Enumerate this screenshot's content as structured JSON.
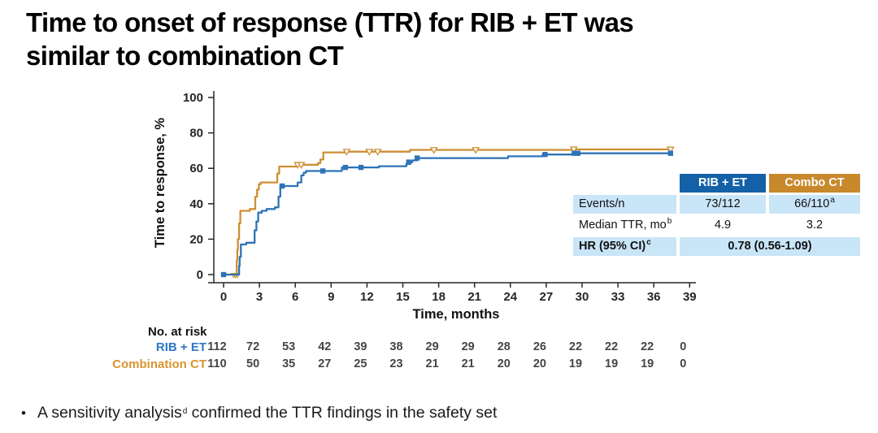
{
  "title": {
    "line1": "Time to onset of response (TTR) for RIB + ET was",
    "line2": "similar to combination CT"
  },
  "colors": {
    "rib_et_line": "#2E73B8",
    "combo_ct_line": "#CE8F33",
    "table_header_blue": "#1461A8",
    "table_header_orange": "#C8882C",
    "table_row_light_blue": "#C9E5F8",
    "at_risk_label_blue": "#2E78C5",
    "at_risk_label_orange": "#D9942F",
    "axis_text": "#262626"
  },
  "chart_data": {
    "type": "line",
    "subtype": "kaplan-meier-step",
    "title": "",
    "xlabel": "Time, months",
    "ylabel": "Time to response, %",
    "xlim": [
      0,
      39
    ],
    "ylim": [
      0,
      100
    ],
    "x_ticks": [
      0,
      3,
      6,
      9,
      12,
      15,
      18,
      21,
      24,
      27,
      30,
      33,
      36,
      39
    ],
    "y_ticks": [
      0,
      20,
      40,
      60,
      80,
      100
    ],
    "grid": false,
    "series": [
      {
        "name": "Combo CT",
        "color": "#CE8F33",
        "marker": "open-triangle-down",
        "points": [
          [
            0,
            0
          ],
          [
            1.05,
            0
          ],
          [
            1.1,
            8
          ],
          [
            1.15,
            14
          ],
          [
            1.2,
            20
          ],
          [
            1.3,
            29
          ],
          [
            1.4,
            36
          ],
          [
            2.2,
            37
          ],
          [
            2.55,
            37
          ],
          [
            2.65,
            44
          ],
          [
            2.8,
            48
          ],
          [
            2.95,
            51
          ],
          [
            3.1,
            52
          ],
          [
            4.35,
            52
          ],
          [
            4.5,
            57
          ],
          [
            4.65,
            61
          ],
          [
            6.1,
            62
          ],
          [
            7.9,
            63
          ],
          [
            8.1,
            65
          ],
          [
            8.35,
            69
          ],
          [
            10.3,
            69.4
          ],
          [
            15.6,
            70.4
          ],
          [
            29.2,
            70.7
          ],
          [
            37.4,
            70.7
          ]
        ],
        "marker_points": [
          [
            6.2,
            62
          ],
          [
            6.5,
            62
          ],
          [
            10.3,
            69.4
          ],
          [
            12.2,
            69.4
          ],
          [
            12.9,
            69.4
          ],
          [
            17.6,
            70.4
          ],
          [
            21.1,
            70.4
          ],
          [
            29.3,
            70.7
          ],
          [
            37.4,
            70.7
          ]
        ],
        "censor_marks": [
          [
            0.85,
            0
          ],
          [
            1.0,
            0
          ],
          [
            1.15,
            0
          ]
        ]
      },
      {
        "name": "RIB + ET",
        "color": "#2E73B8",
        "marker": "filled-square",
        "points": [
          [
            0,
            0
          ],
          [
            1.25,
            0
          ],
          [
            1.3,
            5
          ],
          [
            1.35,
            10
          ],
          [
            1.45,
            17
          ],
          [
            1.9,
            18
          ],
          [
            2.5,
            18
          ],
          [
            2.6,
            25
          ],
          [
            2.75,
            30
          ],
          [
            2.9,
            35
          ],
          [
            3.2,
            36
          ],
          [
            3.6,
            37
          ],
          [
            4.3,
            38
          ],
          [
            4.6,
            44
          ],
          [
            4.75,
            50
          ],
          [
            6.05,
            50
          ],
          [
            6.2,
            52
          ],
          [
            6.5,
            56
          ],
          [
            6.7,
            57.5
          ],
          [
            6.9,
            58.5
          ],
          [
            9.9,
            60.5
          ],
          [
            13.0,
            61.2
          ],
          [
            15.3,
            62.5
          ],
          [
            15.55,
            63.5
          ],
          [
            15.8,
            64.5
          ],
          [
            16.2,
            65.8
          ],
          [
            23.8,
            66.8
          ],
          [
            26.7,
            67.8
          ],
          [
            29.2,
            68.5
          ],
          [
            37.4,
            68.5
          ]
        ],
        "marker_points": [
          [
            0,
            0
          ],
          [
            4.9,
            50
          ],
          [
            8.3,
            58.5
          ],
          [
            10.2,
            60.5
          ],
          [
            11.5,
            60.5
          ],
          [
            15.5,
            63.5
          ],
          [
            16.2,
            65.8
          ],
          [
            26.9,
            67.8
          ],
          [
            29.35,
            68.5
          ],
          [
            29.65,
            68.5
          ],
          [
            37.4,
            68.5
          ]
        ],
        "censor_marks": []
      }
    ]
  },
  "summary_table": {
    "col_headers": [
      "RIB + ET",
      "Combo CT"
    ],
    "rows": [
      {
        "label": "Events/n",
        "label_sup": "",
        "values": [
          "73/112",
          "66/110"
        ],
        "value_sup": "a"
      },
      {
        "label": "Median TTR, mo",
        "label_sup": "b",
        "values": [
          "4.9",
          "3.2"
        ]
      },
      {
        "label": "HR (95% CI)",
        "label_sup": "c",
        "merged_value": "0.78 (0.56-1.09)"
      }
    ]
  },
  "at_risk": {
    "heading": "No. at risk",
    "rows": [
      {
        "label": "RIB + ET",
        "color": "#2E78C5",
        "counts": [
          112,
          72,
          53,
          42,
          39,
          38,
          29,
          29,
          28,
          26,
          22,
          22,
          22,
          0
        ]
      },
      {
        "label": "Combination CT",
        "color": "#D9942F",
        "counts": [
          110,
          50,
          35,
          27,
          25,
          23,
          21,
          21,
          20,
          20,
          19,
          19,
          19,
          0
        ]
      }
    ]
  },
  "bullet": {
    "marker": "•",
    "text_before": "A sensitivity analysis",
    "sup": "d",
    "text_after": " confirmed the TTR findings in the safety set"
  }
}
